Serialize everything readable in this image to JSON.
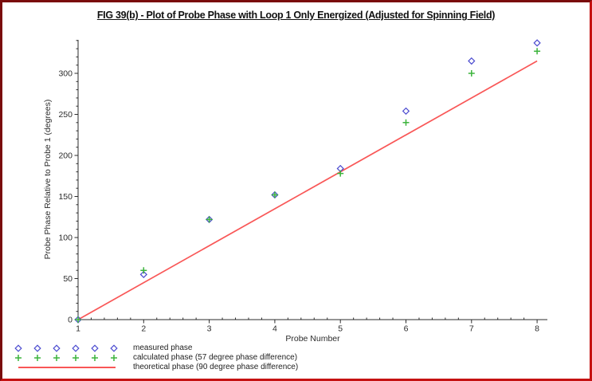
{
  "window": {
    "background": "#ffffff",
    "frame_border_dark": "#7a0c0c",
    "frame_border_bright": "#c51212",
    "axis_color": "#2b2b2b",
    "text_color": "#2b2b2b"
  },
  "chart_data": {
    "type": "scatter",
    "title": "FIG 39(b) - Plot of Probe Phase with Loop 1 Only Energized (Adjusted for Spinning Field)",
    "xlabel": "Probe Number",
    "ylabel": "Probe Phase Relative to Probe 1 (degrees)",
    "xlim": [
      1,
      8.16
    ],
    "ylim": [
      0,
      341
    ],
    "grid": false,
    "legend_position": "bottom-left-outside",
    "x_major_ticks": [
      1,
      2,
      3,
      4,
      5,
      6,
      7,
      8
    ],
    "x_minor_step": 0.2,
    "y_major_ticks": [
      0,
      50,
      100,
      150,
      200,
      250,
      300
    ],
    "y_minor_step": 10,
    "x": [
      1,
      2,
      3,
      4,
      5,
      6,
      7,
      8
    ],
    "series": [
      {
        "name": "measured phase",
        "marker": "diamond",
        "color": "#4949cf",
        "values": [
          0,
          55,
          122,
          152,
          184,
          254,
          315,
          337
        ]
      },
      {
        "name": "calculated phase (57 degree phase difference)",
        "marker": "plus",
        "color": "#3cb43c",
        "values": [
          0,
          60,
          122,
          152,
          178,
          240,
          300,
          327
        ]
      },
      {
        "name": "theoretical phase (90 degree phase difference)",
        "marker": "line",
        "color": "#f95757",
        "line": {
          "x": [
            1,
            8
          ],
          "y": [
            0,
            315
          ]
        }
      }
    ]
  },
  "legend": {
    "swatch_repeat": 6
  }
}
